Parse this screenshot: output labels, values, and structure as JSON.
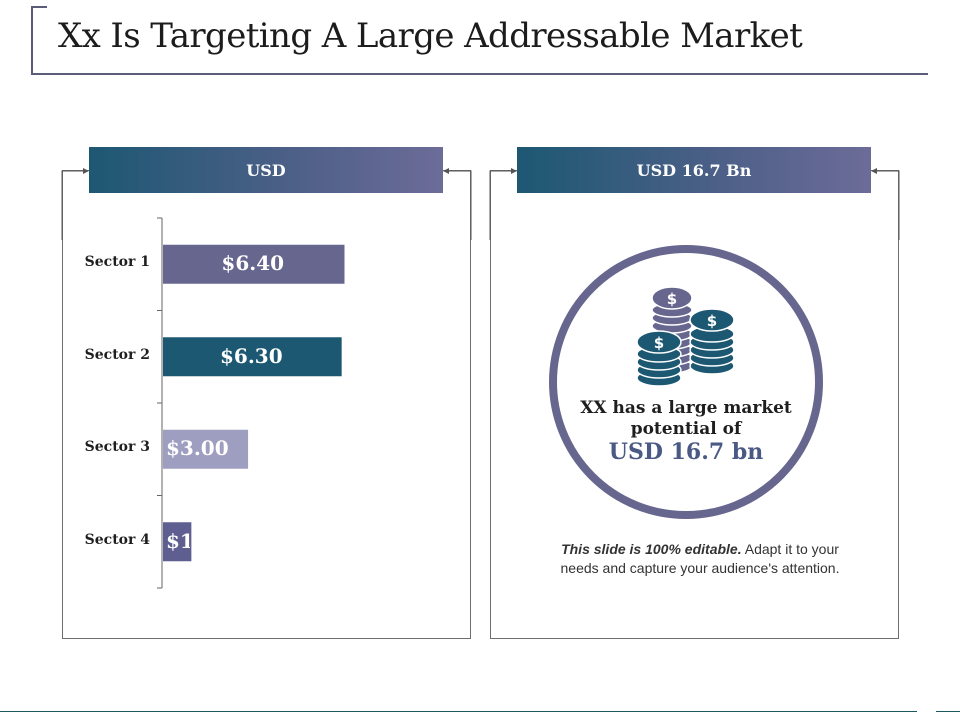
{
  "page": {
    "title": "Xx Is Targeting A Large Addressable Market"
  },
  "left_panel": {
    "header": "USD"
  },
  "right_panel": {
    "header": "USD 16.7 Bn",
    "ring_text_line1": "XX has a large market",
    "ring_text_line2": "potential of",
    "ring_value": "USD 16.7 bn",
    "icon": "money-coins-icon"
  },
  "note": {
    "bold": "This slide is 100% editable.",
    "text": "Adapt it to your needs and capture your audience's attention."
  },
  "colors": {
    "dark_teal": "#1d5873",
    "slate_purple": "#66668f",
    "light_purple": "#9e9ec0",
    "mid_purple": "#5e5e90"
  },
  "chart_data": {
    "type": "bar",
    "orientation": "horizontal",
    "title": "USD",
    "categories": [
      "Sector 1",
      "Sector 2",
      "Sector 3",
      "Sector 4"
    ],
    "values": [
      6.4,
      6.3,
      3.0,
      1
    ],
    "labels": [
      "$6.40",
      "$6.30",
      "$3.00",
      "$1"
    ],
    "colors": [
      "#66668f",
      "#1d5873",
      "#9e9ec0",
      "#5e5e90"
    ],
    "xlim": [
      0,
      13.4
    ],
    "xlabel": "",
    "ylabel": ""
  }
}
